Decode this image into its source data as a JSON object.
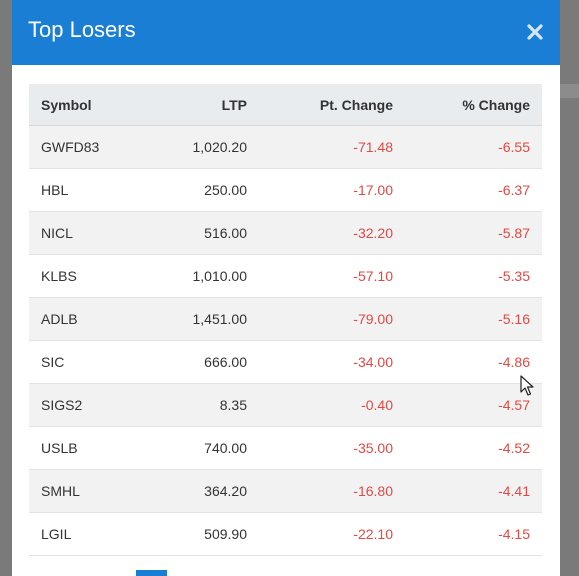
{
  "modal": {
    "title": "Top Losers",
    "close_icon": "close-icon",
    "accent_color": "#1a7fd4"
  },
  "table": {
    "columns": [
      "Symbol",
      "LTP",
      "Pt. Change",
      "% Change"
    ],
    "negative_color": "#e04a45",
    "rows": [
      {
        "symbol": "GWFD83",
        "ltp": "1,020.20",
        "pt_change": "-71.48",
        "pct_change": "-6.55"
      },
      {
        "symbol": "HBL",
        "ltp": "250.00",
        "pt_change": "-17.00",
        "pct_change": "-6.37"
      },
      {
        "symbol": "NICL",
        "ltp": "516.00",
        "pt_change": "-32.20",
        "pct_change": "-5.87"
      },
      {
        "symbol": "KLBS",
        "ltp": "1,010.00",
        "pt_change": "-57.10",
        "pct_change": "-5.35"
      },
      {
        "symbol": "ADLB",
        "ltp": "1,451.00",
        "pt_change": "-79.00",
        "pct_change": "-5.16"
      },
      {
        "symbol": "SIC",
        "ltp": "666.00",
        "pt_change": "-34.00",
        "pct_change": "-4.86"
      },
      {
        "symbol": "SIGS2",
        "ltp": "8.35",
        "pt_change": "-0.40",
        "pct_change": "-4.57"
      },
      {
        "symbol": "USLB",
        "ltp": "740.00",
        "pt_change": "-35.00",
        "pct_change": "-4.52"
      },
      {
        "symbol": "SMHL",
        "ltp": "364.20",
        "pt_change": "-16.80",
        "pct_change": "-4.41"
      },
      {
        "symbol": "LGIL",
        "ltp": "509.90",
        "pt_change": "-22.10",
        "pct_change": "-4.15"
      }
    ]
  }
}
